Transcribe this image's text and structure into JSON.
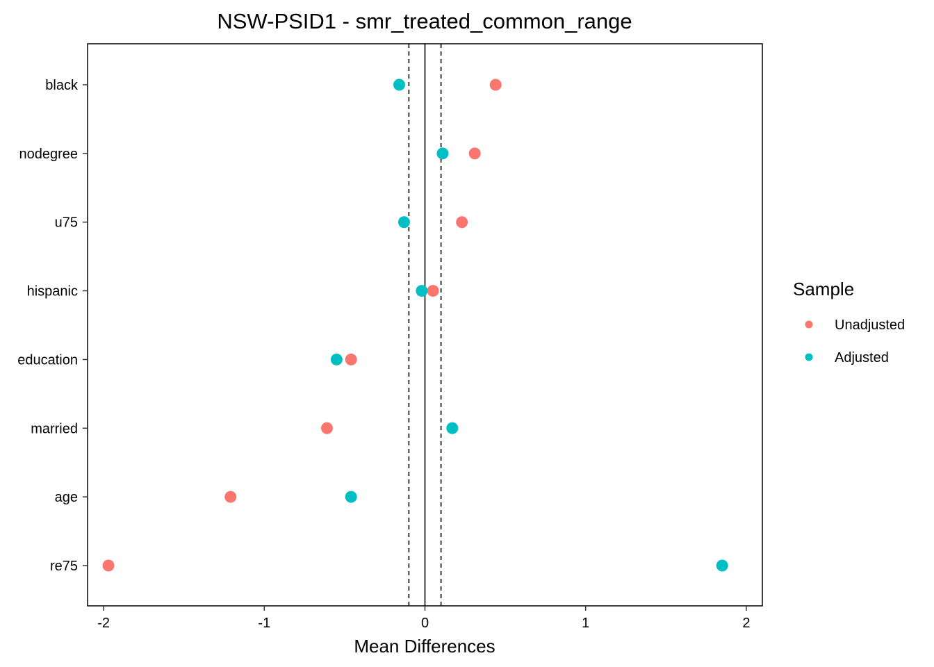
{
  "chart_data": {
    "type": "scatter",
    "title": "NSW-PSID1 - smr_treated_common_range",
    "xlabel": "Mean Differences",
    "ylabel": "",
    "xlim": [
      -2.1,
      2.1
    ],
    "x_ticks": [
      -2,
      -1,
      0,
      1,
      2
    ],
    "x_tick_labels": [
      "-2",
      "-1",
      "0",
      "1",
      "2"
    ],
    "reference_lines": {
      "solid": 0,
      "dashed": [
        -0.1,
        0.1
      ]
    },
    "categories": [
      "black",
      "nodegree",
      "u75",
      "hispanic",
      "education",
      "married",
      "age",
      "re75"
    ],
    "series": [
      {
        "name": "Unadjusted",
        "color": "#F8766D",
        "values": [
          0.44,
          0.31,
          0.23,
          0.05,
          -0.46,
          -0.61,
          -1.21,
          -1.97
        ]
      },
      {
        "name": "Adjusted",
        "color": "#00BFC4",
        "values": [
          -0.16,
          0.11,
          -0.13,
          -0.02,
          -0.55,
          0.17,
          -0.46,
          1.85
        ]
      }
    ],
    "legend": {
      "title": "Sample",
      "position": "right"
    },
    "grid": false
  }
}
